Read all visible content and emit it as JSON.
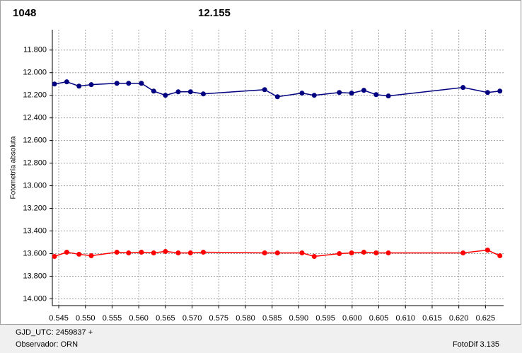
{
  "chart_data": {
    "type": "line",
    "y_label": "Fotometría absoluta",
    "x": [
      0.5442,
      0.5465,
      0.5488,
      0.5511,
      0.5559,
      0.5581,
      0.5605,
      0.5628,
      0.565,
      0.5674,
      0.5697,
      0.5721,
      0.5836,
      0.586,
      0.5906,
      0.5929,
      0.5976,
      0.5999,
      0.6022,
      0.6045,
      0.6068,
      0.6208,
      0.6254,
      0.6277
    ],
    "series": [
      {
        "name": "1048",
        "color": "#ff0000",
        "values": [
          13.625,
          13.588,
          13.606,
          13.619,
          13.588,
          13.594,
          13.588,
          13.594,
          13.581,
          13.594,
          13.594,
          13.588,
          13.594,
          13.594,
          13.594,
          13.625,
          13.6,
          13.594,
          13.588,
          13.594,
          13.594,
          13.594,
          13.569,
          13.619
        ]
      },
      {
        "name": "12.155",
        "color": "#000080",
        "values": [
          12.1,
          12.081,
          12.119,
          12.106,
          12.094,
          12.094,
          12.094,
          12.163,
          12.2,
          12.169,
          12.169,
          12.188,
          12.15,
          12.213,
          12.181,
          12.2,
          12.175,
          12.181,
          12.156,
          12.194,
          12.206,
          12.131,
          12.175,
          12.163
        ]
      }
    ],
    "xlim": [
      0.5438,
      0.6284
    ],
    "xticks": [
      0.545,
      {
        "value": 0.55,
        "label": "0.550"
      },
      0.555,
      {
        "value": 0.56,
        "label": "0.560"
      },
      0.565,
      {
        "value": 0.57,
        "label": "0.570"
      },
      0.575,
      {
        "value": 0.58,
        "label": "0.580"
      },
      0.585,
      {
        "value": 0.59,
        "label": "0.590"
      },
      0.595,
      {
        "value": 0.6,
        "label": "0.600"
      },
      0.605,
      {
        "value": 0.61,
        "label": "0.610"
      },
      0.615,
      {
        "value": 0.62,
        "label": "0.620"
      },
      0.625
    ],
    "ylim": [
      11.62,
      14.06
    ],
    "y_reversed": true,
    "yticks": [
      {
        "value": 11.8,
        "label": "11.800"
      },
      {
        "value": 12,
        "label": "12.000"
      },
      {
        "value": 12.2,
        "label": "12.200"
      },
      {
        "value": 12.4,
        "label": "12.400"
      },
      {
        "value": 12.6,
        "label": "12.600"
      },
      {
        "value": 12.8,
        "label": "12.800"
      },
      {
        "value": 13,
        "label": "13.000"
      },
      {
        "value": 13.2,
        "label": "13.200"
      },
      {
        "value": 13.4,
        "label": "13.400"
      },
      {
        "value": 13.6,
        "label": "13.600"
      },
      {
        "value": 13.8,
        "label": "13.800"
      },
      {
        "value": 14,
        "label": "14.000"
      }
    ],
    "grid": true
  },
  "footer": {
    "date": "GJD_UTC: 2459837 +",
    "observer": "Observador: ORN",
    "software": "FotoDif 3.135"
  }
}
